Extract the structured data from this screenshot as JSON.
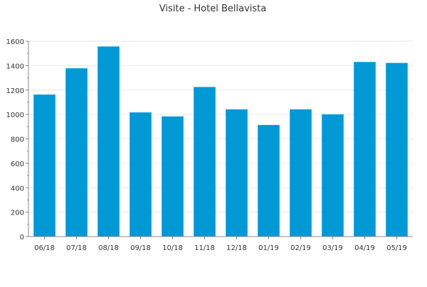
{
  "chart_data": {
    "type": "bar",
    "title": "Visite - Hotel Bellavista",
    "xlabel": "",
    "ylabel": "",
    "categories": [
      "06/18",
      "07/18",
      "08/18",
      "09/18",
      "10/18",
      "11/18",
      "12/18",
      "01/19",
      "02/19",
      "03/19",
      "04/19",
      "05/19"
    ],
    "values": [
      1163,
      1378,
      1557,
      1017,
      984,
      1225,
      1042,
      914,
      1042,
      1001,
      1430,
      1422
    ],
    "ylim": [
      0,
      1600
    ],
    "yticks": [
      0,
      200,
      400,
      600,
      800,
      1000,
      1200,
      1400,
      1600
    ],
    "grid": true,
    "bar_color": "#0099D6",
    "grid_color": "#E6E6E6",
    "axis_color": "#888888"
  }
}
